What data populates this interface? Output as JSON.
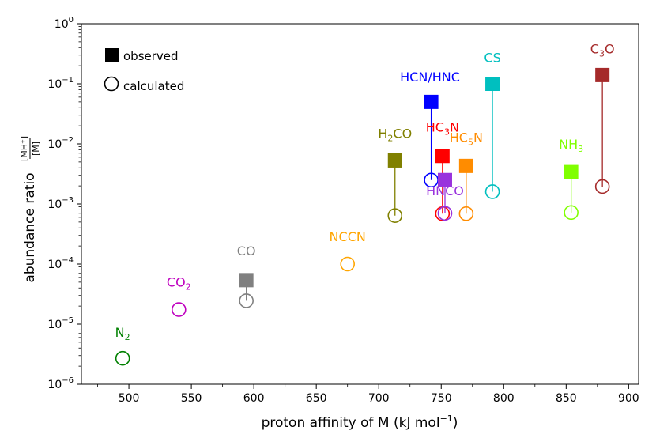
{
  "chart_data": {
    "type": "scatter",
    "xlabel": "proton affinity of M (kJ mol",
    "xlabel_sup": "−1",
    "xlabel_end": ")",
    "ylabel": "abundance ratio",
    "ylabel_num": "[MH⁺]",
    "ylabel_den": "[M]",
    "x_range": [
      462,
      908
    ],
    "y_range_log10": [
      -6,
      0
    ],
    "x_ticks": [
      {
        "value": 500,
        "label": "500"
      },
      {
        "value": 550,
        "label": "550"
      },
      {
        "value": 600,
        "label": "600"
      },
      {
        "value": 650,
        "label": "650"
      },
      {
        "value": 700,
        "label": "700"
      },
      {
        "value": 750,
        "label": "750"
      },
      {
        "value": 800,
        "label": "800"
      },
      {
        "value": 850,
        "label": "850"
      },
      {
        "value": 900,
        "label": "900"
      }
    ],
    "y_ticks": [
      {
        "exp": 0,
        "base": "10",
        "sup": "0"
      },
      {
        "exp": -1,
        "base": "10",
        "sup": "−1"
      },
      {
        "exp": -2,
        "base": "10",
        "sup": "−2"
      },
      {
        "exp": -3,
        "base": "10",
        "sup": "−3"
      },
      {
        "exp": -4,
        "base": "10",
        "sup": "−4"
      },
      {
        "exp": -5,
        "base": "10",
        "sup": "−5"
      },
      {
        "exp": -6,
        "base": "10",
        "sup": "−6"
      }
    ],
    "legend": {
      "position": "top-left",
      "entries": [
        {
          "marker": "filled-square",
          "label": "observed"
        },
        {
          "marker": "open-circle",
          "label": "calculated"
        }
      ]
    },
    "species": [
      {
        "name": "N",
        "sub": "2",
        "color": "#008000",
        "x": 495,
        "calculated": 2.7e-06,
        "observed": null,
        "label_x": 495,
        "label_y": 6.2e-06
      },
      {
        "name": "CO",
        "sub": "2",
        "color": "#bf00bf",
        "x": 540,
        "calculated": 1.75e-05,
        "observed": null,
        "label_x": 540,
        "label_y": 4.2e-05
      },
      {
        "name": "CO",
        "sub": "",
        "color": "#808080",
        "x": 594,
        "calculated": 2.45e-05,
        "observed": 5.4e-05,
        "label_x": 594,
        "label_y": 0.00014
      },
      {
        "name": "NCCN",
        "sub": "",
        "color": "#ffa500",
        "x": 675,
        "calculated": 0.0001,
        "observed": null,
        "label_x": 675,
        "label_y": 0.00024
      },
      {
        "name": "H",
        "sub": "2",
        "tail": "CO",
        "color": "#808000",
        "x": 713,
        "calculated": 0.00064,
        "observed": 0.0053,
        "label_x": 713,
        "label_y": 0.0125
      },
      {
        "name": "HCN/HNC",
        "sub": "",
        "color": "#0000ff",
        "x": 742,
        "calculated": 0.0025,
        "observed": 0.05,
        "label_x": 741,
        "label_y": 0.11
      },
      {
        "name": "HC",
        "sub": "3",
        "tail": "N",
        "color": "#ff0000",
        "x": 751,
        "calculated": 0.00069,
        "observed": 0.0063,
        "label_x": 751,
        "label_y": 0.016
      },
      {
        "name": "HNCO",
        "sub": "",
        "color": "#9933dd",
        "x": 753,
        "calculated": 0.0007,
        "observed": 0.0025,
        "label_x": 753,
        "label_y": 0.0014
      },
      {
        "name": "HC",
        "sub": "5",
        "tail": "N",
        "color": "#ff8c00",
        "x": 770,
        "calculated": 0.00069,
        "observed": 0.0043,
        "label_x": 770,
        "label_y": 0.0108
      },
      {
        "name": "CS",
        "sub": "",
        "color": "#00bfbf",
        "x": 791,
        "calculated": 0.0016,
        "observed": 0.1,
        "label_x": 791,
        "label_y": 0.23
      },
      {
        "name": "NH",
        "sub": "3",
        "color": "#80ff00",
        "x": 854,
        "calculated": 0.00072,
        "observed": 0.0034,
        "label_x": 854,
        "label_y": 0.0083
      },
      {
        "name": "C",
        "sub": "3",
        "tail": "O",
        "color": "#a52a2a",
        "x": 879,
        "calculated": 0.00195,
        "observed": 0.14,
        "label_x": 879,
        "label_y": 0.32
      }
    ]
  }
}
